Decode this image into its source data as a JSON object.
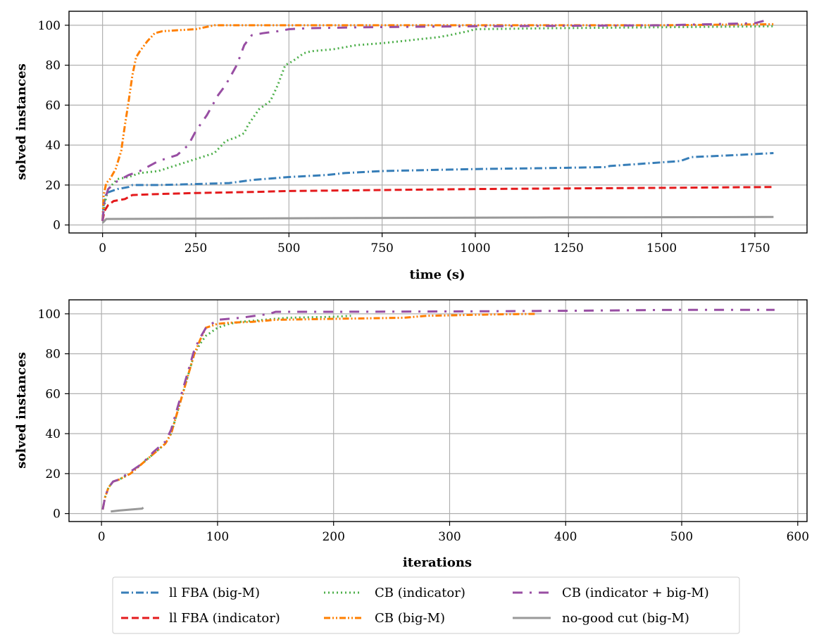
{
  "chart_data": [
    {
      "type": "line",
      "xlabel": "time (s)",
      "ylabel": "solved instances",
      "xlim": [
        -90,
        1890
      ],
      "ylim": [
        -4,
        107
      ],
      "xticks": [
        "0",
        "250",
        "500",
        "750",
        "1000",
        "1250",
        "1500",
        "1750"
      ],
      "xtick_values": [
        0,
        250,
        500,
        750,
        1000,
        1250,
        1500,
        1750
      ],
      "yticks": [
        "0",
        "20",
        "40",
        "60",
        "80",
        "100"
      ],
      "ytick_values": [
        0,
        20,
        40,
        60,
        80,
        100
      ],
      "grid": true,
      "series": [
        {
          "name": "ll FBA (big-M)",
          "color": "#377eb8",
          "dash": "dashdot",
          "x": [
            0,
            3,
            10,
            40,
            70,
            80,
            150,
            250,
            340,
            400,
            500,
            600,
            650,
            750,
            1000,
            1200,
            1350,
            1360,
            1550,
            1580,
            1700,
            1800
          ],
          "y": [
            2,
            10,
            16,
            18,
            19,
            20,
            20,
            20.5,
            21,
            22.5,
            24,
            25,
            26,
            27,
            28,
            28.5,
            29,
            29.5,
            32,
            34,
            35,
            36
          ]
        },
        {
          "name": "ll FBA (indicator)",
          "color": "#e41a1c",
          "dash": "dashed",
          "x": [
            0,
            5,
            15,
            30,
            60,
            80,
            150,
            250,
            400,
            500,
            750,
            1000,
            1250,
            1500,
            1800
          ],
          "y": [
            2,
            7,
            10,
            12,
            13,
            15,
            15.5,
            16,
            16.5,
            17,
            17.5,
            18,
            18.3,
            18.6,
            19
          ]
        },
        {
          "name": "CB (indicator)",
          "color": "#4daf4a",
          "dash": "dotted",
          "x": [
            0,
            5,
            15,
            40,
            70,
            100,
            150,
            200,
            250,
            300,
            330,
            360,
            380,
            390,
            420,
            450,
            470,
            490,
            510,
            540,
            560,
            620,
            650,
            680,
            750,
            800,
            850,
            900,
            930,
            980,
            1000,
            1200,
            1500,
            1800
          ],
          "y": [
            2,
            10,
            18,
            23,
            24,
            26,
            27,
            30,
            33,
            36,
            42,
            44,
            46,
            50,
            58,
            62,
            70,
            80,
            82,
            86,
            87,
            88,
            89,
            90,
            91,
            92,
            93,
            94,
            95,
            97,
            98,
            98.5,
            99,
            99.5
          ]
        },
        {
          "name": "CB (big-M)",
          "color": "#ff7f00",
          "dash": "dashdotdot",
          "x": [
            0,
            3,
            10,
            20,
            35,
            50,
            60,
            70,
            80,
            90,
            100,
            120,
            140,
            160,
            200,
            250,
            300,
            500,
            1000,
            1500,
            1800
          ],
          "y": [
            2,
            15,
            21,
            23,
            28,
            37,
            50,
            62,
            75,
            84,
            87,
            92,
            96,
            97,
            97.5,
            98,
            100,
            100,
            100,
            100,
            100.5
          ]
        },
        {
          "name": "CB (indicator + big-M)",
          "color": "#984ea3",
          "dash": "loosedashdot",
          "x": [
            0,
            5,
            15,
            40,
            70,
            100,
            150,
            200,
            230,
            250,
            280,
            310,
            330,
            360,
            380,
            400,
            430,
            470,
            500,
            550,
            700,
            1000,
            1500,
            1750,
            1790
          ],
          "y": [
            2,
            12,
            18,
            22,
            25,
            27,
            32,
            35,
            40,
            47,
            55,
            65,
            70,
            80,
            90,
            95,
            96,
            97,
            98,
            98.5,
            99,
            99.5,
            100,
            101,
            103
          ]
        },
        {
          "name": "no-good cut (big-M)",
          "color": "#999999",
          "dash": "solid",
          "x": [
            0,
            5,
            10,
            300,
            700,
            1200,
            1800
          ],
          "y": [
            1,
            2,
            3,
            3.2,
            3.5,
            3.8,
            4
          ]
        }
      ]
    },
    {
      "type": "line",
      "xlabel": "iterations",
      "ylabel": "solved instances",
      "xlim": [
        -28,
        608
      ],
      "ylim": [
        -4,
        107
      ],
      "xticks": [
        "0",
        "100",
        "200",
        "300",
        "400",
        "500",
        "600"
      ],
      "xtick_values": [
        0,
        100,
        200,
        300,
        400,
        500,
        600
      ],
      "yticks": [
        "0",
        "20",
        "40",
        "60",
        "80",
        "100"
      ],
      "ytick_values": [
        0,
        20,
        40,
        60,
        80,
        100
      ],
      "grid": true,
      "series": [
        {
          "name": "ll FBA (big-M)",
          "color": "#377eb8",
          "dash": "dashdot",
          "x": [],
          "y": []
        },
        {
          "name": "ll FBA (indicator)",
          "color": "#e41a1c",
          "dash": "dashed",
          "x": [],
          "y": []
        },
        {
          "name": "CB (indicator)",
          "color": "#4daf4a",
          "dash": "dotted",
          "x": [
            1,
            3,
            6,
            10,
            15,
            25,
            35,
            45,
            55,
            60,
            65,
            70,
            75,
            80,
            85,
            90,
            95,
            100,
            110,
            120,
            140,
            160,
            200,
            215
          ],
          "y": [
            2,
            8,
            13,
            16,
            17,
            20,
            25,
            30,
            35,
            40,
            50,
            60,
            70,
            80,
            85,
            89,
            91,
            93,
            95,
            96,
            97,
            98,
            98.5,
            99
          ]
        },
        {
          "name": "CB (big-M)",
          "color": "#ff7f00",
          "dash": "dashdotdot",
          "x": [
            1,
            3,
            6,
            10,
            15,
            25,
            35,
            45,
            55,
            60,
            65,
            70,
            75,
            80,
            85,
            90,
            95,
            100,
            110,
            130,
            150,
            200,
            260,
            280,
            300,
            320,
            340,
            375
          ],
          "y": [
            2,
            8,
            13,
            16,
            17,
            20,
            25,
            30,
            35,
            40,
            50,
            60,
            70,
            80,
            87,
            93,
            94,
            95,
            95.5,
            96,
            97,
            97.5,
            98,
            99,
            99.2,
            99.5,
            99.7,
            100
          ]
        },
        {
          "name": "CB (indicator + big-M)",
          "color": "#984ea3",
          "dash": "loosedashdot",
          "x": [
            1,
            3,
            6,
            10,
            15,
            25,
            35,
            45,
            55,
            60,
            65,
            70,
            75,
            80,
            85,
            90,
            95,
            100,
            120,
            145,
            150,
            200,
            300,
            400,
            500,
            580
          ],
          "y": [
            2,
            8,
            13,
            16,
            17,
            21,
            25,
            31,
            36,
            42,
            52,
            62,
            72,
            82,
            88,
            93,
            95,
            97,
            98,
            100,
            101,
            101,
            101.2,
            101.5,
            102,
            102
          ]
        },
        {
          "name": "no-good cut (big-M)",
          "color": "#999999",
          "dash": "solid",
          "x": [
            8,
            15,
            25,
            35,
            36
          ],
          "y": [
            1,
            1.5,
            2,
            2.5,
            3
          ]
        }
      ]
    }
  ],
  "legend": [
    {
      "label": "ll FBA (big-M)",
      "color": "#377eb8",
      "dash": "dashdot"
    },
    {
      "label": "ll FBA (indicator)",
      "color": "#e41a1c",
      "dash": "dashed"
    },
    {
      "label": "CB (indicator)",
      "color": "#4daf4a",
      "dash": "dotted"
    },
    {
      "label": "CB (big-M)",
      "color": "#ff7f00",
      "dash": "dashdotdot"
    },
    {
      "label": "CB (indicator + big-M)",
      "color": "#984ea3",
      "dash": "loosedashdot"
    },
    {
      "label": "no-good cut (big-M)",
      "color": "#999999",
      "dash": "solid"
    }
  ]
}
